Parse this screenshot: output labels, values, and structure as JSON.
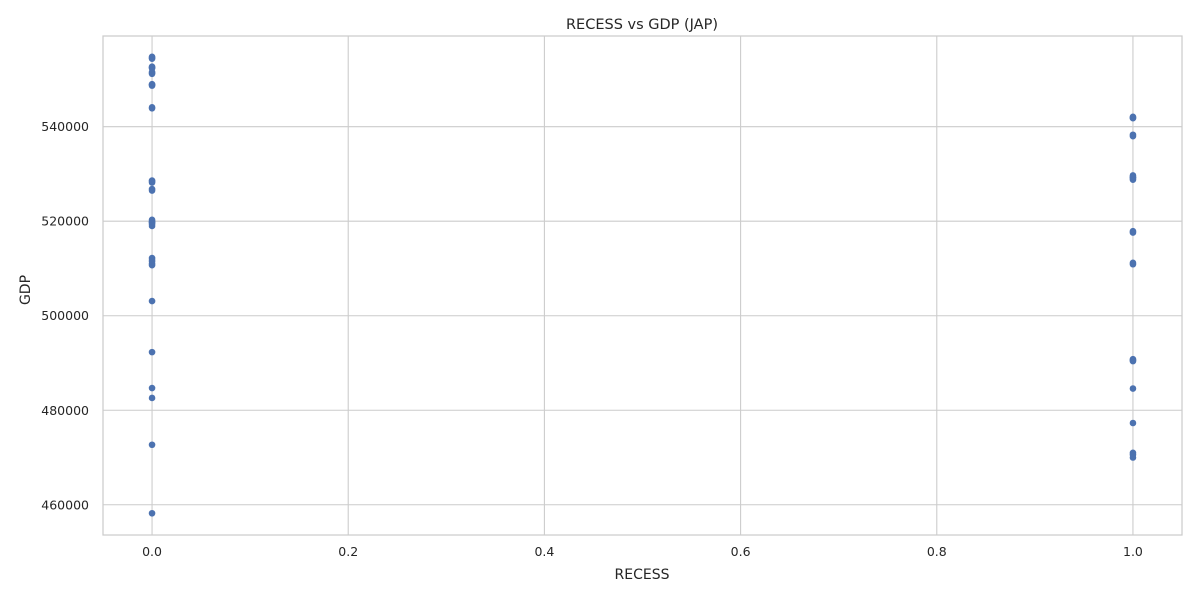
{
  "chart_data": {
    "type": "scatter",
    "title": "RECESS vs GDP (JAP)",
    "xlabel": "RECESS",
    "ylabel": "GDP",
    "xlim": [
      -0.05,
      1.05
    ],
    "ylim": [
      453600,
      559200
    ],
    "xticks": [
      0.0,
      0.2,
      0.4,
      0.6,
      0.8,
      1.0
    ],
    "xtick_labels": [
      "0.0",
      "0.2",
      "0.4",
      "0.6",
      "0.8",
      "1.0"
    ],
    "yticks": [
      460000,
      480000,
      500000,
      520000,
      540000
    ],
    "ytick_labels": [
      "460000",
      "480000",
      "500000",
      "520000",
      "540000"
    ],
    "grid": true,
    "marker_color": "#4c72b0",
    "x": [
      0,
      0,
      0,
      0,
      0,
      0,
      0,
      0,
      0,
      0,
      0,
      0,
      0,
      0,
      0,
      0,
      0,
      0,
      0,
      0,
      0,
      0,
      0,
      0,
      0,
      0,
      0,
      0,
      0,
      0,
      0,
      0,
      0,
      0,
      0,
      0,
      1,
      1,
      1,
      1,
      1,
      1,
      1,
      1,
      1,
      1,
      1,
      1,
      1,
      1,
      1,
      1,
      1,
      1,
      1,
      1,
      1,
      1
    ],
    "y": [
      554800,
      554400,
      552700,
      552400,
      551600,
      551200,
      549000,
      548700,
      544100,
      543900,
      528600,
      528200,
      526800,
      526500,
      520300,
      520000,
      519700,
      519400,
      519000,
      512200,
      511800,
      511500,
      511000,
      510700,
      503100,
      492300,
      484700,
      482600,
      472700,
      458200,
      554600,
      552500,
      551400,
      548900,
      528400,
      519800,
      542100,
      541800,
      538300,
      538000,
      529700,
      529400,
      529100,
      528800,
      517900,
      517600,
      511200,
      510900,
      490800,
      490600,
      490400,
      484600,
      477300,
      471000,
      470600,
      470000,
      541900,
      529300
    ]
  }
}
